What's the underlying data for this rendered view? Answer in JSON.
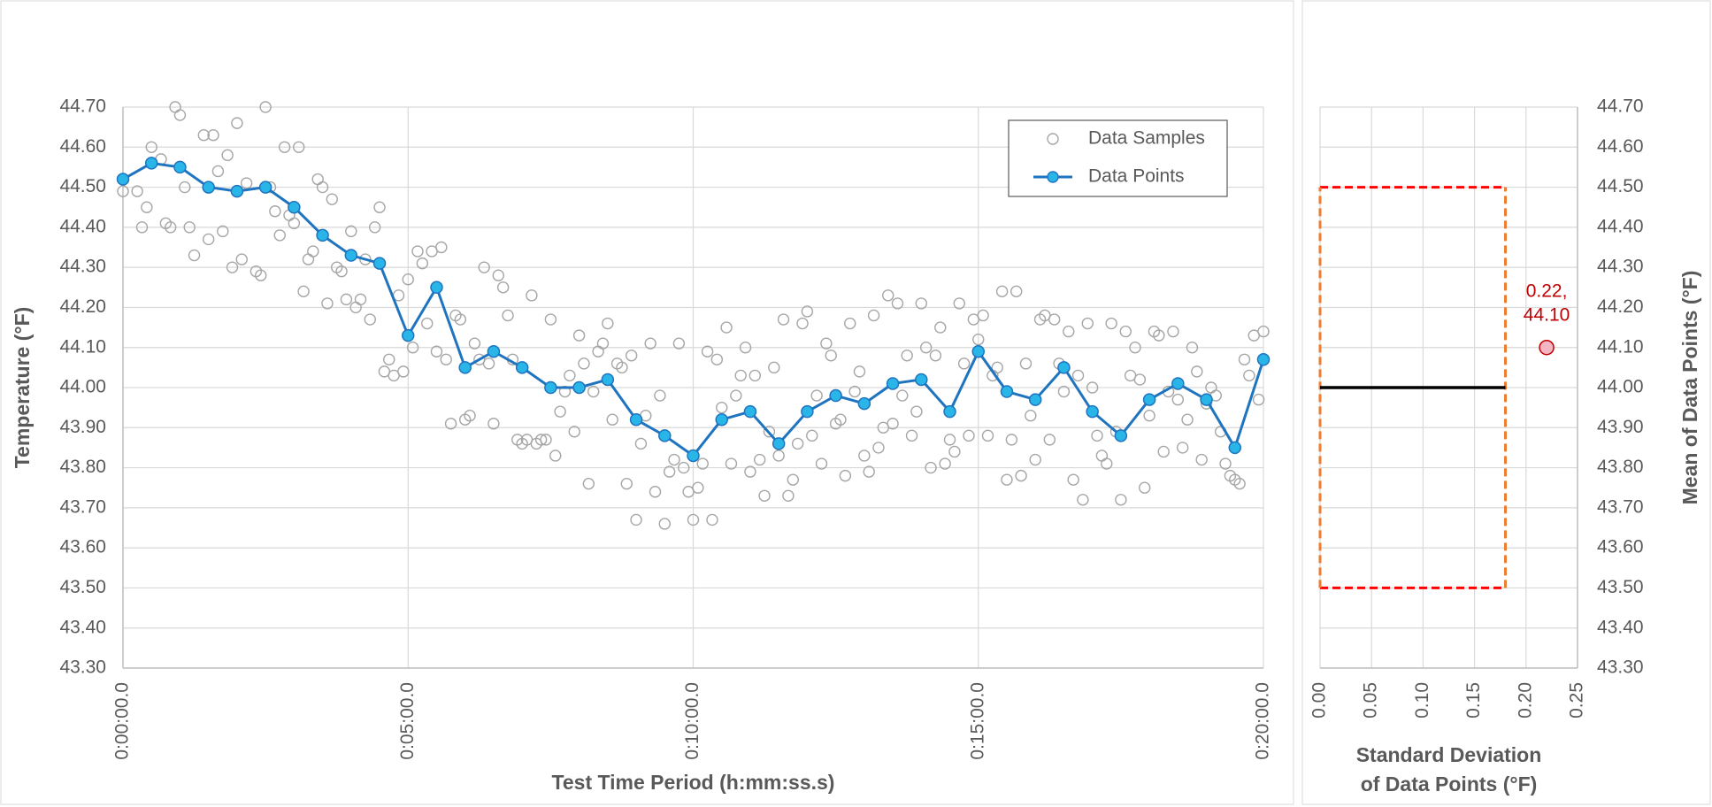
{
  "chart_data": [
    {
      "type": "scatter",
      "x_label": "Test Time Period (h:mm:ss.s)",
      "y_label": "Temperature (°F)",
      "xlim": [
        0,
        1200
      ],
      "xticks": [
        {
          "value": 0,
          "label": "0:00:00.0"
        },
        {
          "value": 300,
          "label": "0:05:00.0"
        },
        {
          "value": 600,
          "label": "0:10:00.0"
        },
        {
          "value": 900,
          "label": "0:15:00.0"
        },
        {
          "value": 1200,
          "label": "0:20:00.0"
        }
      ],
      "ylim": [
        43.3,
        44.7
      ],
      "yticks": [
        {
          "value": 43.3,
          "label": "43.30"
        },
        {
          "value": 43.4,
          "label": "43.40"
        },
        {
          "value": 43.5,
          "label": "43.50"
        },
        {
          "value": 43.6,
          "label": "43.60"
        },
        {
          "value": 43.7,
          "label": "43.70"
        },
        {
          "value": 43.8,
          "label": "43.80"
        },
        {
          "value": 43.9,
          "label": "43.90"
        },
        {
          "value": 44.0,
          "label": "44.00"
        },
        {
          "value": 44.1,
          "label": "44.10"
        },
        {
          "value": 44.2,
          "label": "44.20"
        },
        {
          "value": 44.3,
          "label": "44.30"
        },
        {
          "value": 44.4,
          "label": "44.40"
        },
        {
          "value": 44.5,
          "label": "44.50"
        },
        {
          "value": 44.6,
          "label": "44.60"
        },
        {
          "value": 44.7,
          "label": "44.70"
        }
      ],
      "y_axis_position": "left",
      "grid": true,
      "legend": "upper right",
      "series": [
        {
          "name": "Data Samples",
          "mode": "markers",
          "color": "#a6a6a6",
          "x": [
            0,
            15,
            20,
            25,
            30,
            40,
            45,
            50,
            55,
            60,
            65,
            70,
            75,
            85,
            90,
            95,
            100,
            105,
            110,
            115,
            120,
            125,
            130,
            140,
            145,
            150,
            155,
            160,
            165,
            170,
            175,
            180,
            185,
            190,
            195,
            200,
            205,
            210,
            215,
            220,
            225,
            230,
            235,
            240,
            245,
            250,
            255,
            260,
            265,
            270,
            275,
            280,
            285,
            290,
            295,
            300,
            305,
            310,
            315,
            320,
            325,
            330,
            335,
            340,
            345,
            350,
            355,
            360,
            365,
            370,
            375,
            380,
            385,
            390,
            395,
            400,
            405,
            410,
            415,
            420,
            425,
            430,
            435,
            440,
            445,
            450,
            455,
            460,
            465,
            470,
            475,
            480,
            485,
            490,
            495,
            500,
            505,
            510,
            515,
            520,
            525,
            530,
            535,
            540,
            545,
            550,
            555,
            560,
            565,
            570,
            575,
            580,
            585,
            590,
            595,
            600,
            605,
            610,
            615,
            620,
            625,
            630,
            635,
            640,
            645,
            650,
            655,
            660,
            665,
            670,
            675,
            680,
            685,
            690,
            695,
            700,
            705,
            710,
            715,
            720,
            725,
            730,
            735,
            740,
            745,
            750,
            755,
            760,
            765,
            770,
            775,
            780,
            785,
            790,
            795,
            800,
            805,
            810,
            815,
            820,
            825,
            830,
            835,
            840,
            845,
            850,
            855,
            860,
            865,
            870,
            875,
            880,
            885,
            890,
            895,
            900,
            905,
            910,
            915,
            920,
            925,
            930,
            935,
            940,
            945,
            950,
            955,
            960,
            965,
            970,
            975,
            980,
            985,
            990,
            995,
            1000,
            1005,
            1010,
            1015,
            1020,
            1025,
            1030,
            1035,
            1040,
            1045,
            1050,
            1055,
            1060,
            1065,
            1070,
            1075,
            1080,
            1085,
            1090,
            1095,
            1100,
            1105,
            1110,
            1115,
            1120,
            1125,
            1130,
            1135,
            1140,
            1145,
            1150,
            1155,
            1160,
            1165,
            1170,
            1175,
            1180,
            1185,
            1190,
            1195,
            1200
          ],
          "values": [
            44.49,
            44.49,
            44.4,
            44.45,
            44.6,
            44.57,
            44.41,
            44.4,
            44.7,
            44.68,
            44.5,
            44.4,
            44.33,
            44.63,
            44.37,
            44.63,
            44.54,
            44.39,
            44.58,
            44.3,
            44.66,
            44.32,
            44.51,
            44.29,
            44.28,
            44.7,
            44.5,
            44.44,
            44.38,
            44.6,
            44.43,
            44.41,
            44.6,
            44.24,
            44.32,
            44.34,
            44.52,
            44.5,
            44.21,
            44.47,
            44.3,
            44.29,
            44.22,
            44.39,
            44.2,
            44.22,
            44.32,
            44.17,
            44.4,
            44.45,
            44.04,
            44.07,
            44.03,
            44.23,
            44.04,
            44.27,
            44.1,
            44.34,
            44.31,
            44.16,
            44.34,
            44.09,
            44.35,
            44.07,
            43.91,
            44.18,
            44.17,
            43.92,
            43.93,
            44.11,
            44.07,
            44.3,
            44.06,
            43.91,
            44.28,
            44.25,
            44.18,
            44.07,
            43.87,
            43.86,
            43.87,
            44.23,
            43.86,
            43.87,
            43.87,
            44.17,
            43.83,
            43.94,
            43.99,
            44.03,
            43.89,
            44.13,
            44.06,
            43.76,
            43.99,
            44.09,
            44.11,
            44.16,
            43.92,
            44.06,
            44.05,
            43.76,
            44.08,
            43.67,
            43.86,
            43.93,
            44.11,
            43.74,
            43.98,
            43.66,
            43.79,
            43.82,
            44.11,
            43.8,
            43.74,
            43.67,
            43.75,
            43.81,
            44.09,
            43.67,
            44.07,
            43.95,
            44.15,
            43.81,
            43.98,
            44.03,
            44.1,
            43.79,
            44.03,
            43.82,
            43.73,
            43.89,
            44.05,
            43.83,
            44.17,
            43.73,
            43.77,
            43.86,
            44.16,
            44.19,
            43.88,
            43.98,
            43.81,
            44.11,
            44.08,
            43.91,
            43.92,
            43.78,
            44.16,
            43.99,
            44.04,
            43.83,
            43.79,
            44.18,
            43.85,
            43.9,
            44.23,
            43.91,
            44.21,
            43.98,
            44.08,
            43.88,
            43.94,
            44.21,
            44.1,
            43.8,
            44.08,
            44.15,
            43.81,
            43.87,
            43.84,
            44.21,
            44.06,
            43.88,
            44.17,
            44.12,
            44.18,
            43.88,
            44.03,
            44.05,
            44.24,
            43.77,
            43.87,
            44.24,
            43.78,
            44.06,
            43.93,
            43.82,
            44.17,
            44.18,
            43.87,
            44.17,
            44.06,
            43.99,
            44.14,
            43.77,
            44.03,
            43.72,
            44.16,
            44.0,
            43.88,
            43.83,
            43.81,
            44.16,
            43.89,
            43.72,
            44.14,
            44.03,
            44.1,
            44.02,
            43.75,
            43.93,
            44.14,
            44.13,
            43.84,
            43.99,
            44.14,
            43.97,
            43.85,
            43.92,
            44.1,
            44.04,
            43.82,
            43.96,
            44.0,
            43.98,
            43.89,
            43.81,
            43.78,
            43.77,
            43.76,
            44.07,
            44.03,
            44.13,
            43.97,
            44.14
          ]
        },
        {
          "name": "Data Points",
          "mode": "lines+markers",
          "color": "#1f74c0",
          "marker_color": "#29b5e8",
          "x": [
            0,
            30,
            60,
            90,
            120,
            150,
            180,
            210,
            240,
            270,
            300,
            330,
            360,
            390,
            420,
            450,
            480,
            510,
            540,
            570,
            600,
            630,
            660,
            690,
            720,
            750,
            780,
            810,
            840,
            870,
            900,
            930,
            960,
            990,
            1020,
            1050,
            1080,
            1110,
            1140,
            1170,
            1200
          ],
          "values": [
            44.52,
            44.56,
            44.55,
            44.5,
            44.49,
            44.5,
            44.45,
            44.38,
            44.33,
            44.31,
            44.13,
            44.25,
            44.05,
            44.09,
            44.05,
            44.0,
            44.0,
            44.02,
            43.92,
            43.88,
            43.83,
            43.92,
            43.94,
            43.86,
            43.94,
            43.98,
            43.96,
            44.01,
            44.02,
            43.94,
            44.09,
            43.99,
            43.97,
            44.05,
            43.94,
            43.88,
            43.97,
            44.01,
            43.97,
            43.85,
            44.07
          ]
        }
      ]
    },
    {
      "type": "scatter",
      "x_label": [
        "Standard Deviation",
        "of Data Points (°F)"
      ],
      "y_label": "Mean of Data Points (°F)",
      "xlim": [
        0,
        0.25
      ],
      "xticks": [
        {
          "value": 0,
          "label": "0.00"
        },
        {
          "value": 0.05,
          "label": "0.05"
        },
        {
          "value": 0.1,
          "label": "0.10"
        },
        {
          "value": 0.15,
          "label": "0.15"
        },
        {
          "value": 0.2,
          "label": "0.20"
        },
        {
          "value": 0.25,
          "label": "0.25"
        }
      ],
      "ylim": [
        43.3,
        44.7
      ],
      "yticks": [
        {
          "value": 43.3,
          "label": "43.30"
        },
        {
          "value": 43.4,
          "label": "43.40"
        },
        {
          "value": 43.5,
          "label": "43.50"
        },
        {
          "value": 43.6,
          "label": "43.60"
        },
        {
          "value": 43.7,
          "label": "43.70"
        },
        {
          "value": 43.8,
          "label": "43.80"
        },
        {
          "value": 43.9,
          "label": "43.90"
        },
        {
          "value": 44.0,
          "label": "44.00"
        },
        {
          "value": 44.1,
          "label": "44.10"
        },
        {
          "value": 44.2,
          "label": "44.20"
        },
        {
          "value": 44.3,
          "label": "44.30"
        },
        {
          "value": 44.4,
          "label": "44.40"
        },
        {
          "value": 44.5,
          "label": "44.50"
        },
        {
          "value": 44.6,
          "label": "44.60"
        },
        {
          "value": 44.7,
          "label": "44.70"
        }
      ],
      "y_axis_position": "right",
      "grid": true,
      "spec_box": {
        "x": [
          0,
          0.18
        ],
        "y": [
          43.5,
          44.5
        ],
        "horizontal_color": "#ff0000",
        "vertical_color": "#ed7d31"
      },
      "target_line": {
        "x": [
          0,
          0.18
        ],
        "y": 44.0,
        "color": "#000000"
      },
      "point": {
        "x": 0.22,
        "y": 44.1,
        "label": [
          "0.22,",
          "44.10"
        ],
        "color": "#f4b6c2",
        "label_color": "#c00000"
      }
    }
  ]
}
